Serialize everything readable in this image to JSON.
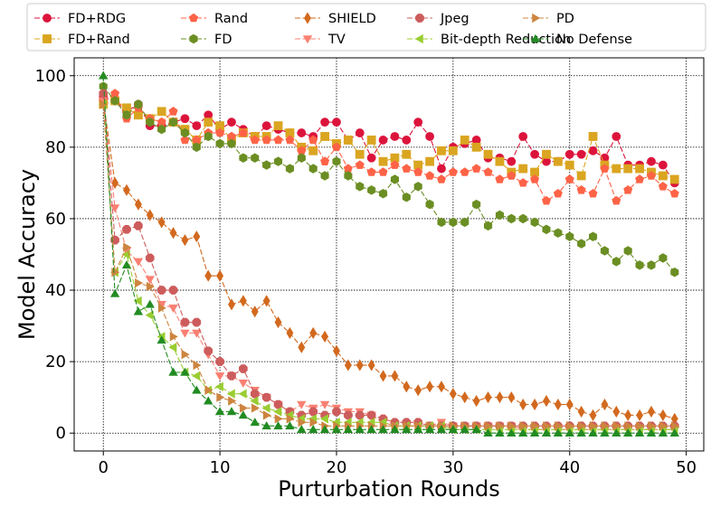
{
  "chart_data": {
    "type": "line",
    "title": "",
    "xlabel": "Purturbation Rounds",
    "ylabel": "Model Accuracy",
    "xlim": [
      -2.5,
      51.5
    ],
    "ylim": [
      -5,
      105
    ],
    "xticks": [
      0,
      10,
      20,
      30,
      40,
      50
    ],
    "yticks": [
      0,
      20,
      40,
      60,
      80,
      100
    ],
    "grid": true,
    "legend_position": "top",
    "x": [
      0,
      1,
      2,
      3,
      4,
      5,
      6,
      7,
      8,
      9,
      10,
      11,
      12,
      13,
      14,
      15,
      16,
      17,
      18,
      19,
      20,
      21,
      22,
      23,
      24,
      25,
      26,
      27,
      28,
      29,
      30,
      31,
      32,
      33,
      34,
      35,
      36,
      37,
      38,
      39,
      40,
      41,
      42,
      43,
      44,
      45,
      46,
      47,
      48,
      49
    ],
    "series": [
      {
        "name": "FD+RDG",
        "color": "#dc143c",
        "marker": "circle",
        "values": [
          94,
          93,
          90,
          92,
          86,
          86,
          87,
          88,
          86,
          89,
          85,
          87,
          85,
          83,
          86,
          85,
          84,
          84,
          83,
          87,
          87,
          82,
          84,
          77,
          82,
          83,
          82,
          87,
          83,
          74,
          80,
          81,
          82,
          77,
          77,
          76,
          83,
          78,
          76,
          76,
          78,
          78,
          79,
          77,
          83,
          75,
          75,
          76,
          75,
          70
        ]
      },
      {
        "name": "FD+Rand",
        "color": "#daa520",
        "marker": "square",
        "values": [
          92,
          93,
          91,
          89,
          88,
          90,
          87,
          85,
          82,
          87,
          86,
          82,
          84,
          83,
          83,
          86,
          84,
          80,
          79,
          83,
          81,
          82,
          78,
          82,
          76,
          77,
          78,
          75,
          76,
          79,
          79,
          82,
          80,
          78,
          76,
          73,
          74,
          73,
          78,
          76,
          75,
          72,
          83,
          75,
          74,
          74,
          74,
          73,
          72,
          71
        ]
      },
      {
        "name": "Rand",
        "color": "#ff6347",
        "marker": "pentagon",
        "values": [
          93,
          95,
          88,
          91,
          88,
          87,
          90,
          82,
          82,
          84,
          84,
          83,
          84,
          82,
          82,
          82,
          82,
          79,
          82,
          76,
          80,
          74,
          75,
          73,
          73,
          75,
          74,
          73,
          72,
          71,
          73,
          73,
          74,
          73,
          71,
          72,
          70,
          71,
          65,
          67,
          71,
          68,
          67,
          74,
          65,
          68,
          71,
          72,
          69,
          67
        ]
      },
      {
        "name": "FD",
        "color": "#6b8e23",
        "marker": "hexagon",
        "values": [
          97,
          93,
          89,
          92,
          87,
          85,
          87,
          84,
          80,
          83,
          81,
          81,
          77,
          77,
          75,
          76,
          74,
          77,
          74,
          72,
          76,
          72,
          69,
          68,
          67,
          71,
          66,
          69,
          64,
          59,
          59,
          59,
          64,
          58,
          61,
          60,
          60,
          59,
          57,
          56,
          55,
          53,
          55,
          51,
          48,
          51,
          47,
          47,
          49,
          45
        ]
      },
      {
        "name": "SHIELD",
        "color": "#d2691e",
        "marker": "thin_diamond",
        "values": [
          93,
          70,
          68,
          64,
          61,
          59,
          56,
          54,
          55,
          44,
          44,
          36,
          37,
          34,
          37,
          31,
          28,
          24,
          28,
          27,
          23,
          19,
          19,
          19,
          16,
          16,
          13,
          12,
          13,
          13,
          11,
          10,
          9,
          10,
          10,
          10,
          8,
          8,
          9,
          8,
          8,
          6,
          5,
          8,
          6,
          5,
          5,
          6,
          5,
          4
        ]
      },
      {
        "name": "TV",
        "color": "#fa8072",
        "marker": "triangle_down",
        "values": [
          93,
          63,
          51,
          48,
          43,
          36,
          35,
          28,
          28,
          22,
          16,
          16,
          14,
          12,
          10,
          8,
          6,
          8,
          7,
          8,
          7,
          6,
          6,
          5,
          3,
          2,
          2,
          2,
          2,
          3,
          2,
          2,
          2,
          2,
          2,
          2,
          1,
          1,
          1,
          1,
          1,
          1,
          1,
          1,
          1,
          1,
          1,
          1,
          1,
          1
        ]
      },
      {
        "name": "Jpeg",
        "color": "#cd5c5c",
        "marker": "octagon",
        "values": [
          95,
          54,
          57,
          58,
          49,
          40,
          40,
          31,
          31,
          23,
          20,
          16,
          18,
          11,
          10,
          8,
          6,
          5,
          6,
          5,
          6,
          5,
          5,
          5,
          4,
          3,
          3,
          3,
          2,
          2,
          2,
          2,
          2,
          2,
          2,
          2,
          2,
          2,
          2,
          2,
          2,
          2,
          2,
          2,
          2,
          2,
          2,
          2,
          2,
          2
        ]
      },
      {
        "name": "Bit-depth Reduction",
        "color": "#9acd32",
        "marker": "triangle_left",
        "values": [
          92,
          45,
          50,
          37,
          33,
          27,
          24,
          17,
          16,
          12,
          13,
          11,
          11,
          9,
          7,
          6,
          5,
          4,
          4,
          4,
          3,
          3,
          3,
          3,
          3,
          2,
          2,
          2,
          2,
          2,
          1,
          1,
          1,
          1,
          1,
          1,
          1,
          1,
          1,
          1,
          1,
          1,
          1,
          1,
          1,
          1,
          1,
          1,
          1,
          1
        ]
      },
      {
        "name": "PD",
        "color": "#cd853f",
        "marker": "triangle_right",
        "values": [
          92,
          45,
          52,
          42,
          41,
          35,
          27,
          22,
          19,
          12,
          10,
          9,
          7,
          7,
          5,
          4,
          4,
          3,
          3,
          2,
          2,
          2,
          2,
          2,
          2,
          2,
          2,
          2,
          2,
          2,
          2,
          2,
          2,
          2,
          2,
          2,
          2,
          2,
          2,
          2,
          2,
          2,
          2,
          2,
          2,
          2,
          2,
          2,
          2,
          2
        ]
      },
      {
        "name": "No Defense",
        "color": "#228b22",
        "marker": "triangle_up",
        "values": [
          100,
          39,
          47,
          34,
          36,
          26,
          17,
          17,
          12,
          9,
          6,
          6,
          5,
          3,
          2,
          2,
          2,
          1,
          1,
          1,
          1,
          1,
          1,
          1,
          1,
          1,
          1,
          1,
          1,
          1,
          1,
          1,
          1,
          0,
          0,
          0,
          0,
          0,
          0,
          0,
          0,
          0,
          0,
          0,
          0,
          0,
          0,
          0,
          0,
          0
        ]
      }
    ]
  }
}
